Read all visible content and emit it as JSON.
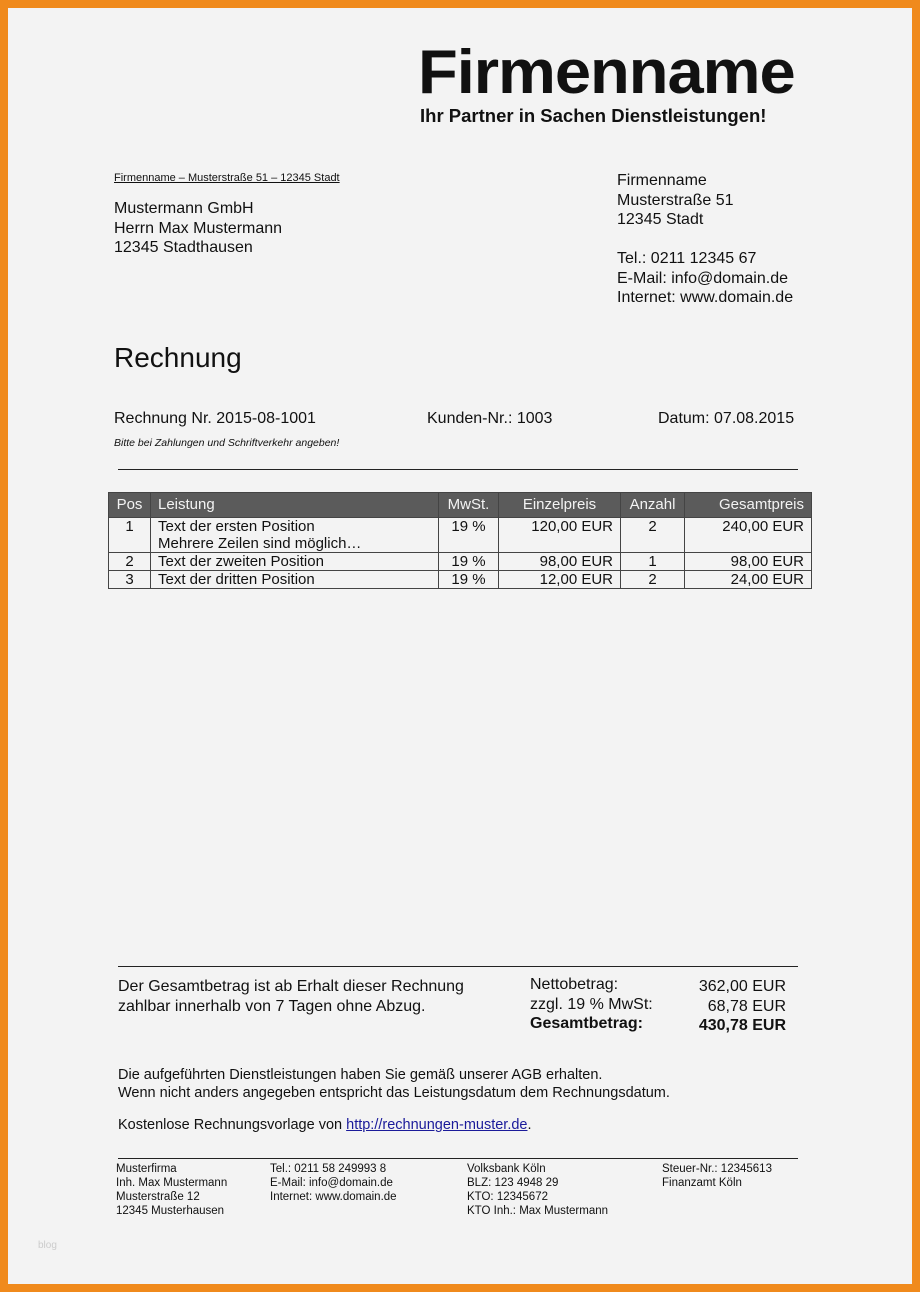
{
  "colors": {
    "border": "#f08a1c",
    "table_header": "#5b5b5b",
    "link": "#1a1a9a"
  },
  "logo": {
    "name": "Firmenname",
    "tagline": "Ihr Partner in Sachen Dienstleistungen!"
  },
  "sender_line": "Firmenname – Musterstraße 51 – 12345 Stadt",
  "recipient": [
    "Mustermann GmbH",
    "Herrn Max Mustermann",
    "12345 Stadthausen"
  ],
  "company": [
    "Firmenname",
    "Musterstraße 51",
    "12345 Stadt",
    "",
    "Tel.: 0211 12345 67",
    "E-Mail: info@domain.de",
    "Internet: www.domain.de"
  ],
  "title": "Rechnung",
  "meta": {
    "invoice": "Rechnung Nr. 2015-08-1001",
    "customer": "Kunden-Nr.: 1003",
    "date": "Datum: 07.08.2015",
    "hint": "Bitte bei Zahlungen und Schriftverkehr angeben!"
  },
  "table": {
    "headers": [
      "Pos",
      "Leistung",
      "MwSt.",
      "Einzelpreis",
      "Anzahl",
      "Gesamtpreis"
    ],
    "rows": [
      {
        "pos": "1",
        "desc": "Text der ersten Position",
        "desc2": "Mehrere Zeilen sind möglich…",
        "vat": "19 %",
        "unit": "120,00 EUR",
        "qty": "2",
        "total": "240,00 EUR"
      },
      {
        "pos": "2",
        "desc": "Text der zweiten Position",
        "vat": "19 %",
        "unit": "98,00 EUR",
        "qty": "1",
        "total": "98,00 EUR"
      },
      {
        "pos": "3",
        "desc": "Text der dritten Position",
        "vat": "19 %",
        "unit": "12,00 EUR",
        "qty": "2",
        "total": "24,00 EUR"
      }
    ]
  },
  "summary": {
    "text1": "Der Gesamtbetrag ist ab Erhalt dieser Rechnung",
    "text2": "zahlbar innerhalb von 7 Tagen ohne Abzug.",
    "net_label": "Nettobetrag:",
    "net": "362,00 EUR",
    "vat_label": "zzgl. 19 % MwSt:",
    "vat": "68,78 EUR",
    "gross_label": "Gesamtbetrag:",
    "gross": "430,78 EUR"
  },
  "notes": [
    "Die aufgeführten Dienstleistungen haben Sie gemäß unserer AGB erhalten.",
    "Wenn nicht anders angegeben entspricht das Leistungsdatum dem Rechnungsdatum."
  ],
  "credit": {
    "prefix": "Kostenlose Rechnungsvorlage von ",
    "link": "http://rechnungen-muster.de",
    "suffix": "."
  },
  "footer": [
    [
      "Musterfirma",
      "Inh. Max Mustermann",
      "Musterstraße 12",
      "12345 Musterhausen"
    ],
    [
      "Tel.: 0211 58 249993 8",
      "E-Mail: info@domain.de",
      "Internet: www.domain.de"
    ],
    [
      "Volksbank Köln",
      "BLZ: 123 4948 29",
      "KTO: 12345672",
      "KTO Inh.: Max Mustermann"
    ],
    [
      "Steuer-Nr.: 12345613",
      "Finanzamt Köln"
    ]
  ],
  "watermark": "blog"
}
